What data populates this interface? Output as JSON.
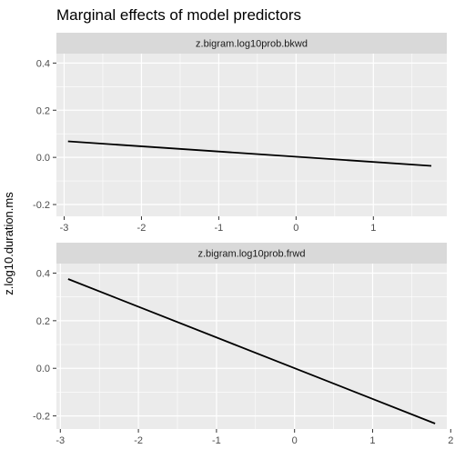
{
  "chart_data": {
    "type": "line",
    "title": "Marginal effects of model predictors",
    "ylabel": "z.log10.duration.ms",
    "colors": {
      "panel_bg": "#ebebeb",
      "strip_bg": "#d9d9d9",
      "grid": "#ffffff",
      "line": "#000000",
      "text": "#4d4d4d"
    },
    "panels": [
      {
        "strip": "z.bigram.log10prob.bkwd",
        "xlim": [
          -3.1,
          1.95
        ],
        "ylim": [
          -0.25,
          0.44
        ],
        "x_ticks": [
          -3,
          -2,
          -1,
          0,
          1
        ],
        "y_ticks": [
          -0.2,
          0.0,
          0.2,
          0.4
        ],
        "y_tick_labels": [
          "-0.2",
          "0.0",
          "0.2",
          "0.4"
        ],
        "x": [
          -2.95,
          1.75
        ],
        "y": [
          0.068,
          -0.036
        ]
      },
      {
        "strip": "z.bigram.log10prob.frwd",
        "xlim": [
          -3.05,
          1.95
        ],
        "ylim": [
          -0.255,
          0.44
        ],
        "x_ticks": [
          -3,
          -2,
          -1,
          0,
          1,
          2
        ],
        "y_ticks": [
          -0.2,
          0.0,
          0.2,
          0.4
        ],
        "y_tick_labels": [
          "-0.2",
          "0.0",
          "0.2",
          "0.4"
        ],
        "x": [
          -2.9,
          1.8
        ],
        "y": [
          0.375,
          -0.232
        ]
      }
    ]
  }
}
